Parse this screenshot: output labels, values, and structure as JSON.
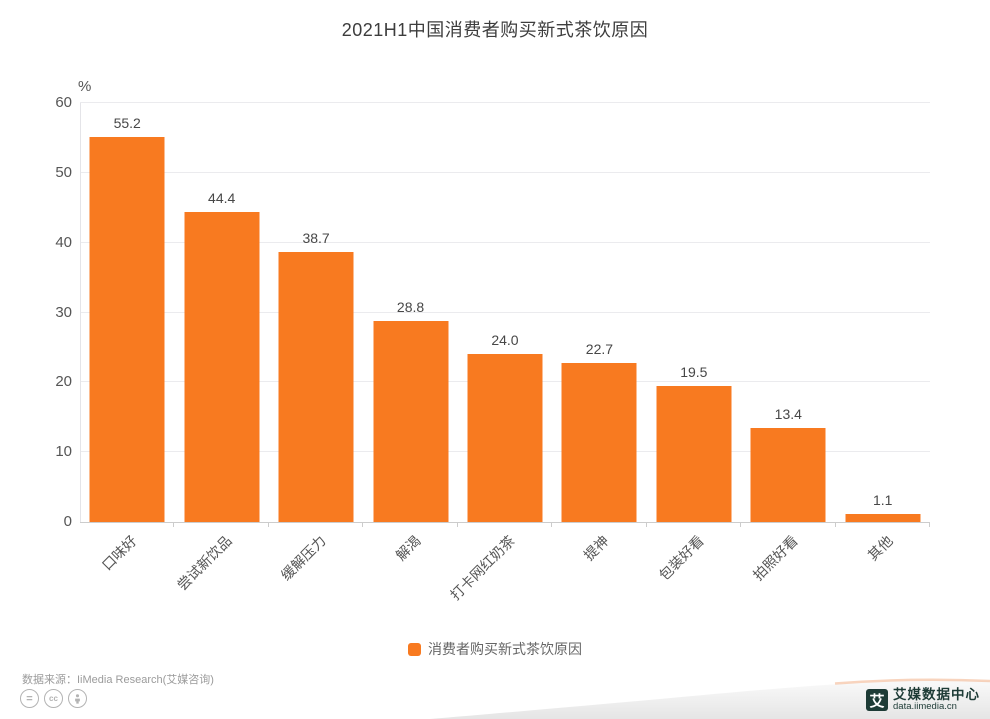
{
  "title": "2021H1中国消费者购买新式茶饮原因",
  "chart_data": {
    "type": "bar",
    "categories": [
      "口味好",
      "尝试新饮品",
      "缓解压力",
      "解渴",
      "打卡网红奶茶",
      "提神",
      "包装好看",
      "拍照好看",
      "其他"
    ],
    "values": [
      55.2,
      44.4,
      38.7,
      28.8,
      24.0,
      22.7,
      19.5,
      13.4,
      1.1
    ],
    "value_labels": [
      "55.2",
      "44.4",
      "38.7",
      "28.8",
      "24.0",
      "22.7",
      "19.5",
      "13.4",
      "1.1"
    ],
    "unit": "%",
    "ylim": [
      0,
      60
    ],
    "yticks": [
      0,
      10,
      20,
      30,
      40,
      50,
      60
    ],
    "legend": "消费者购买新式茶饮原因",
    "bar_color": "#F87A20",
    "grid": true,
    "legend_position": "bottom"
  },
  "footer": {
    "source": "数据来源：IiMedia Research(艾媒咨询)",
    "license_icons": [
      "equals-icon",
      "cc-icon",
      "attribution-icon"
    ],
    "equals_glyph": "=",
    "cc_glyph": "cc",
    "brand_mark": "艾",
    "brand_name": "艾媒数据中心",
    "brand_url": "data.iimedia.cn"
  },
  "colors": {
    "accent": "#F87A20",
    "brand_dark": "#1d3b36",
    "grid": "#ebebee",
    "axis": "#cccccc"
  }
}
